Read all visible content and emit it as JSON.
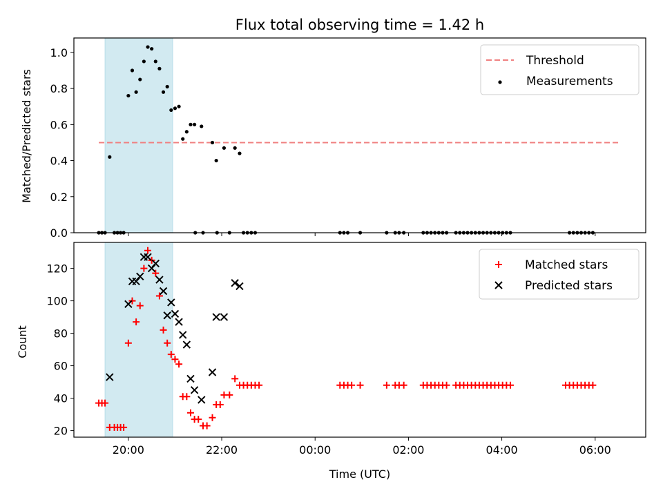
{
  "chart_data": [
    {
      "type": "scatter",
      "title": "Flux total observing time = 1.42 h",
      "xlabel": "",
      "ylabel": "Matched/Predicted stars",
      "xlim": [
        "18:50",
        "31:05"
      ],
      "ylim": [
        0,
        1.08
      ],
      "x_tick_labels": [
        "20:00",
        "22:00",
        "00:00",
        "02:00",
        "04:00",
        "06:00"
      ],
      "x_ticks": [
        "20:00",
        "22:00",
        "24:00",
        "26:00",
        "28:00",
        "30:00"
      ],
      "y_ticks": [
        0.0,
        0.2,
        0.4,
        0.6,
        0.8,
        1.0
      ],
      "y_tick_labels": [
        "0.0",
        "0.2",
        "0.4",
        "0.6",
        "0.8",
        "1.0"
      ],
      "shaded_span": [
        "19:30",
        "20:57"
      ],
      "shade_color": "#add8e6",
      "grid": false,
      "legend": "top-right",
      "threshold": {
        "name": "Threshold",
        "value": 0.5,
        "x_range": [
          "19:22",
          "30:32"
        ],
        "color": "#f08080",
        "style": "dashed"
      },
      "series": [
        {
          "name": "Measurements",
          "color": "#000000",
          "marker": "dot",
          "points": [
            {
              "x": "19:22",
              "y": 0.0
            },
            {
              "x": "19:26",
              "y": 0.0
            },
            {
              "x": "19:30",
              "y": 0.0
            },
            {
              "x": "19:36",
              "y": 0.42
            },
            {
              "x": "19:42",
              "y": 0.0
            },
            {
              "x": "19:46",
              "y": 0.0
            },
            {
              "x": "19:50",
              "y": 0.0
            },
            {
              "x": "19:54",
              "y": 0.0
            },
            {
              "x": "20:00",
              "y": 0.76
            },
            {
              "x": "20:05",
              "y": 0.9
            },
            {
              "x": "20:10",
              "y": 0.78
            },
            {
              "x": "20:15",
              "y": 0.85
            },
            {
              "x": "20:20",
              "y": 0.95
            },
            {
              "x": "20:25",
              "y": 1.03
            },
            {
              "x": "20:30",
              "y": 1.02
            },
            {
              "x": "20:35",
              "y": 0.95
            },
            {
              "x": "20:40",
              "y": 0.91
            },
            {
              "x": "20:45",
              "y": 0.78
            },
            {
              "x": "20:50",
              "y": 0.81
            },
            {
              "x": "20:55",
              "y": 0.68
            },
            {
              "x": "21:00",
              "y": 0.69
            },
            {
              "x": "21:05",
              "y": 0.7
            },
            {
              "x": "21:10",
              "y": 0.52
            },
            {
              "x": "21:15",
              "y": 0.56
            },
            {
              "x": "21:20",
              "y": 0.6
            },
            {
              "x": "21:25",
              "y": 0.6
            },
            {
              "x": "21:26",
              "y": 0.0
            },
            {
              "x": "21:36",
              "y": 0.0
            },
            {
              "x": "21:34",
              "y": 0.59
            },
            {
              "x": "21:48",
              "y": 0.5
            },
            {
              "x": "21:53",
              "y": 0.4
            },
            {
              "x": "21:54",
              "y": 0.0
            },
            {
              "x": "22:03",
              "y": 0.47
            },
            {
              "x": "22:10",
              "y": 0.0
            },
            {
              "x": "22:17",
              "y": 0.47
            },
            {
              "x": "22:23",
              "y": 0.44
            },
            {
              "x": "22:28",
              "y": 0.0
            },
            {
              "x": "22:33",
              "y": 0.0
            },
            {
              "x": "22:38",
              "y": 0.0
            },
            {
              "x": "22:43",
              "y": 0.0
            },
            {
              "x": "24:32",
              "y": 0.0
            },
            {
              "x": "24:37",
              "y": 0.0
            },
            {
              "x": "24:42",
              "y": 0.0
            },
            {
              "x": "24:58",
              "y": 0.0
            },
            {
              "x": "25:32",
              "y": 0.0
            },
            {
              "x": "25:43",
              "y": 0.0
            },
            {
              "x": "25:48",
              "y": 0.0
            },
            {
              "x": "25:54",
              "y": 0.0
            },
            {
              "x": "26:19",
              "y": 0.0
            },
            {
              "x": "26:24",
              "y": 0.0
            },
            {
              "x": "26:29",
              "y": 0.0
            },
            {
              "x": "26:34",
              "y": 0.0
            },
            {
              "x": "26:39",
              "y": 0.0
            },
            {
              "x": "26:44",
              "y": 0.0
            },
            {
              "x": "26:49",
              "y": 0.0
            },
            {
              "x": "27:01",
              "y": 0.0
            },
            {
              "x": "27:06",
              "y": 0.0
            },
            {
              "x": "27:11",
              "y": 0.0
            },
            {
              "x": "27:16",
              "y": 0.0
            },
            {
              "x": "27:21",
              "y": 0.0
            },
            {
              "x": "27:26",
              "y": 0.0
            },
            {
              "x": "27:31",
              "y": 0.0
            },
            {
              "x": "27:36",
              "y": 0.0
            },
            {
              "x": "27:41",
              "y": 0.0
            },
            {
              "x": "27:46",
              "y": 0.0
            },
            {
              "x": "27:51",
              "y": 0.0
            },
            {
              "x": "27:56",
              "y": 0.0
            },
            {
              "x": "28:01",
              "y": 0.0
            },
            {
              "x": "28:06",
              "y": 0.0
            },
            {
              "x": "28:11",
              "y": 0.0
            },
            {
              "x": "29:27",
              "y": 0.0
            },
            {
              "x": "29:32",
              "y": 0.0
            },
            {
              "x": "29:37",
              "y": 0.0
            },
            {
              "x": "29:42",
              "y": 0.0
            },
            {
              "x": "29:47",
              "y": 0.0
            },
            {
              "x": "29:52",
              "y": 0.0
            },
            {
              "x": "29:57",
              "y": 0.0
            }
          ]
        }
      ]
    },
    {
      "type": "scatter",
      "title": "",
      "xlabel": "Time (UTC)",
      "ylabel": "Count",
      "xlim": [
        "18:50",
        "31:05"
      ],
      "ylim": [
        16,
        136
      ],
      "x_tick_labels": [
        "20:00",
        "22:00",
        "00:00",
        "02:00",
        "04:00",
        "06:00"
      ],
      "x_ticks": [
        "20:00",
        "22:00",
        "24:00",
        "26:00",
        "28:00",
        "30:00"
      ],
      "y_ticks": [
        20,
        40,
        60,
        80,
        100,
        120
      ],
      "y_tick_labels": [
        "20",
        "40",
        "60",
        "80",
        "100",
        "120"
      ],
      "shaded_span": [
        "19:30",
        "20:57"
      ],
      "shade_color": "#add8e6",
      "grid": false,
      "legend": "top-right",
      "series": [
        {
          "name": "Matched stars",
          "color": "#ff0000",
          "marker": "plus",
          "points": [
            {
              "x": "19:22",
              "y": 37
            },
            {
              "x": "19:26",
              "y": 37
            },
            {
              "x": "19:30",
              "y": 37
            },
            {
              "x": "19:36",
              "y": 22
            },
            {
              "x": "19:42",
              "y": 22
            },
            {
              "x": "19:46",
              "y": 22
            },
            {
              "x": "19:50",
              "y": 22
            },
            {
              "x": "19:54",
              "y": 22
            },
            {
              "x": "20:00",
              "y": 74
            },
            {
              "x": "20:05",
              "y": 100
            },
            {
              "x": "20:10",
              "y": 87
            },
            {
              "x": "20:15",
              "y": 97
            },
            {
              "x": "20:20",
              "y": 120
            },
            {
              "x": "20:25",
              "y": 131
            },
            {
              "x": "20:30",
              "y": 125
            },
            {
              "x": "20:35",
              "y": 117
            },
            {
              "x": "20:40",
              "y": 103
            },
            {
              "x": "20:45",
              "y": 82
            },
            {
              "x": "20:50",
              "y": 74
            },
            {
              "x": "20:55",
              "y": 67
            },
            {
              "x": "21:00",
              "y": 64
            },
            {
              "x": "21:05",
              "y": 61
            },
            {
              "x": "21:10",
              "y": 41
            },
            {
              "x": "21:15",
              "y": 41
            },
            {
              "x": "21:20",
              "y": 31
            },
            {
              "x": "21:25",
              "y": 27
            },
            {
              "x": "21:30",
              "y": 27
            },
            {
              "x": "21:36",
              "y": 23
            },
            {
              "x": "21:41",
              "y": 23
            },
            {
              "x": "21:48",
              "y": 28
            },
            {
              "x": "21:53",
              "y": 36
            },
            {
              "x": "21:58",
              "y": 36
            },
            {
              "x": "22:03",
              "y": 42
            },
            {
              "x": "22:10",
              "y": 42
            },
            {
              "x": "22:17",
              "y": 52
            },
            {
              "x": "22:23",
              "y": 48
            },
            {
              "x": "22:28",
              "y": 48
            },
            {
              "x": "22:33",
              "y": 48
            },
            {
              "x": "22:38",
              "y": 48
            },
            {
              "x": "22:43",
              "y": 48
            },
            {
              "x": "22:48",
              "y": 48
            },
            {
              "x": "24:32",
              "y": 48
            },
            {
              "x": "24:37",
              "y": 48
            },
            {
              "x": "24:42",
              "y": 48
            },
            {
              "x": "24:47",
              "y": 48
            },
            {
              "x": "24:58",
              "y": 48
            },
            {
              "x": "25:32",
              "y": 48
            },
            {
              "x": "25:43",
              "y": 48
            },
            {
              "x": "25:48",
              "y": 48
            },
            {
              "x": "25:54",
              "y": 48
            },
            {
              "x": "26:19",
              "y": 48
            },
            {
              "x": "26:24",
              "y": 48
            },
            {
              "x": "26:29",
              "y": 48
            },
            {
              "x": "26:34",
              "y": 48
            },
            {
              "x": "26:39",
              "y": 48
            },
            {
              "x": "26:44",
              "y": 48
            },
            {
              "x": "26:49",
              "y": 48
            },
            {
              "x": "27:01",
              "y": 48
            },
            {
              "x": "27:06",
              "y": 48
            },
            {
              "x": "27:11",
              "y": 48
            },
            {
              "x": "27:16",
              "y": 48
            },
            {
              "x": "27:21",
              "y": 48
            },
            {
              "x": "27:26",
              "y": 48
            },
            {
              "x": "27:31",
              "y": 48
            },
            {
              "x": "27:36",
              "y": 48
            },
            {
              "x": "27:41",
              "y": 48
            },
            {
              "x": "27:46",
              "y": 48
            },
            {
              "x": "27:51",
              "y": 48
            },
            {
              "x": "27:56",
              "y": 48
            },
            {
              "x": "28:01",
              "y": 48
            },
            {
              "x": "28:06",
              "y": 48
            },
            {
              "x": "28:11",
              "y": 48
            },
            {
              "x": "29:22",
              "y": 48
            },
            {
              "x": "29:27",
              "y": 48
            },
            {
              "x": "29:32",
              "y": 48
            },
            {
              "x": "29:37",
              "y": 48
            },
            {
              "x": "29:42",
              "y": 48
            },
            {
              "x": "29:47",
              "y": 48
            },
            {
              "x": "29:52",
              "y": 48
            },
            {
              "x": "29:57",
              "y": 48
            }
          ]
        },
        {
          "name": "Predicted stars",
          "color": "#000000",
          "marker": "cross",
          "points": [
            {
              "x": "19:36",
              "y": 53
            },
            {
              "x": "20:00",
              "y": 98
            },
            {
              "x": "20:05",
              "y": 112
            },
            {
              "x": "20:10",
              "y": 112
            },
            {
              "x": "20:15",
              "y": 115
            },
            {
              "x": "20:20",
              "y": 127
            },
            {
              "x": "20:25",
              "y": 127
            },
            {
              "x": "20:30",
              "y": 120
            },
            {
              "x": "20:35",
              "y": 123
            },
            {
              "x": "20:40",
              "y": 113
            },
            {
              "x": "20:45",
              "y": 106
            },
            {
              "x": "20:50",
              "y": 91
            },
            {
              "x": "20:55",
              "y": 99
            },
            {
              "x": "21:00",
              "y": 92
            },
            {
              "x": "21:05",
              "y": 87
            },
            {
              "x": "21:10",
              "y": 79
            },
            {
              "x": "21:15",
              "y": 73
            },
            {
              "x": "21:20",
              "y": 52
            },
            {
              "x": "21:25",
              "y": 45
            },
            {
              "x": "21:34",
              "y": 39
            },
            {
              "x": "21:48",
              "y": 56
            },
            {
              "x": "21:53",
              "y": 90
            },
            {
              "x": "22:03",
              "y": 90
            },
            {
              "x": "22:17",
              "y": 111
            },
            {
              "x": "22:23",
              "y": 109
            }
          ]
        }
      ]
    }
  ]
}
